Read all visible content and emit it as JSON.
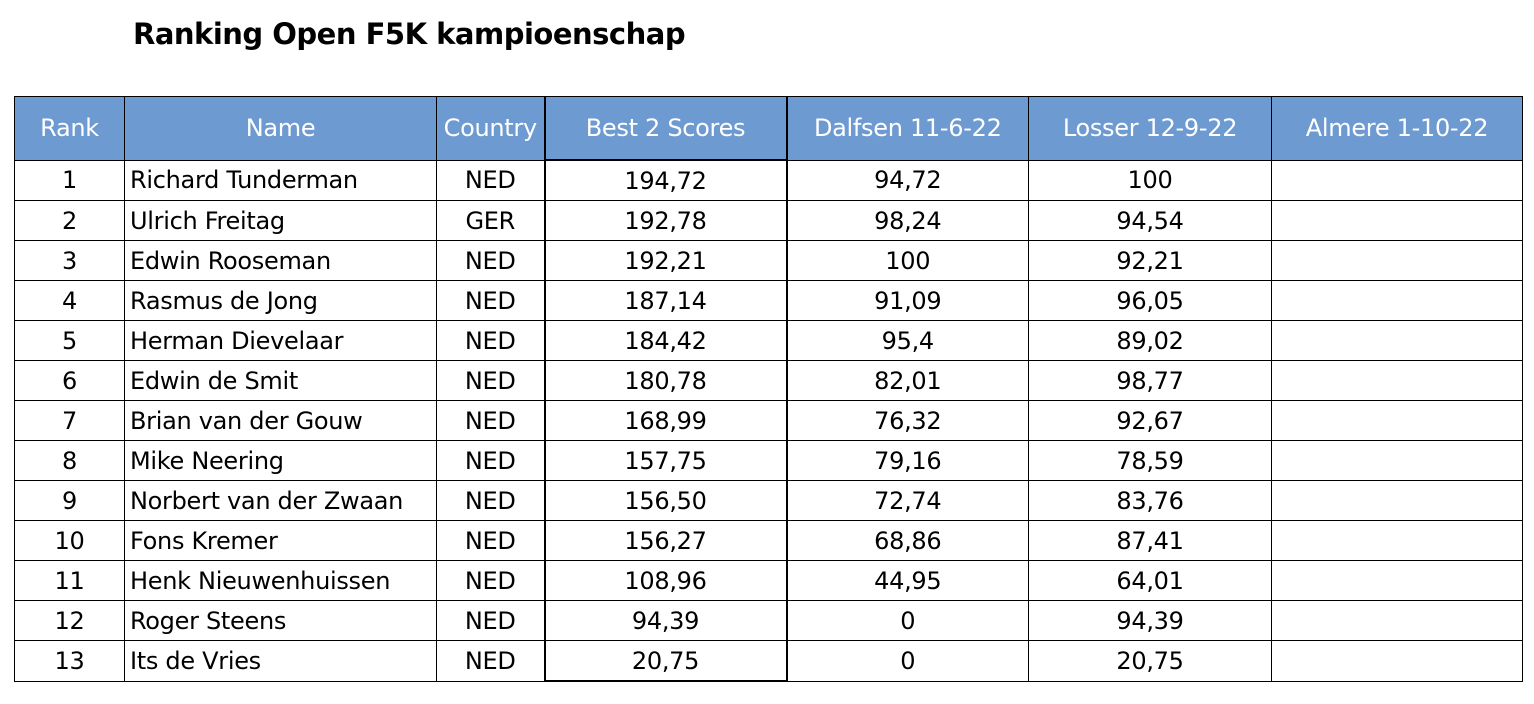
{
  "title": "Ranking Open F5K kampioenschap",
  "colors": {
    "header_bg": "#6d9ad0",
    "header_text": "#ffffff",
    "grid": "#000000"
  },
  "table": {
    "headers": {
      "rank": "Rank",
      "name": "Name",
      "country": "Country",
      "best": "Best 2 Scores",
      "event1": "Dalfsen 11-6-22",
      "event2": "Losser 12-9-22",
      "event3": "Almere 1-10-22"
    },
    "rows": [
      {
        "rank": "1",
        "name": "Richard Tunderman",
        "country": "NED",
        "best": "194,72",
        "event1": "94,72",
        "event2": "100",
        "event3": ""
      },
      {
        "rank": "2",
        "name": "Ulrich Freitag",
        "country": "GER",
        "best": "192,78",
        "event1": "98,24",
        "event2": "94,54",
        "event3": ""
      },
      {
        "rank": "3",
        "name": "Edwin Rooseman",
        "country": "NED",
        "best": "192,21",
        "event1": "100",
        "event2": "92,21",
        "event3": ""
      },
      {
        "rank": "4",
        "name": "Rasmus de Jong",
        "country": "NED",
        "best": "187,14",
        "event1": "91,09",
        "event2": "96,05",
        "event3": ""
      },
      {
        "rank": "5",
        "name": "Herman Dievelaar",
        "country": "NED",
        "best": "184,42",
        "event1": "95,4",
        "event2": "89,02",
        "event3": ""
      },
      {
        "rank": "6",
        "name": "Edwin de Smit",
        "country": "NED",
        "best": "180,78",
        "event1": "82,01",
        "event2": "98,77",
        "event3": ""
      },
      {
        "rank": "7",
        "name": "Brian van der Gouw",
        "country": "NED",
        "best": "168,99",
        "event1": "76,32",
        "event2": "92,67",
        "event3": ""
      },
      {
        "rank": "8",
        "name": "Mike Neering",
        "country": "NED",
        "best": "157,75",
        "event1": "79,16",
        "event2": "78,59",
        "event3": ""
      },
      {
        "rank": "9",
        "name": "Norbert van der Zwaan",
        "country": "NED",
        "best": "156,50",
        "event1": "72,74",
        "event2": "83,76",
        "event3": ""
      },
      {
        "rank": "10",
        "name": "Fons Kremer",
        "country": "NED",
        "best": "156,27",
        "event1": "68,86",
        "event2": "87,41",
        "event3": ""
      },
      {
        "rank": "11",
        "name": "Henk Nieuwenhuissen",
        "country": "NED",
        "best": "108,96",
        "event1": "44,95",
        "event2": "64,01",
        "event3": ""
      },
      {
        "rank": "12",
        "name": "Roger Steens",
        "country": "NED",
        "best": "94,39",
        "event1": "0",
        "event2": "94,39",
        "event3": ""
      },
      {
        "rank": "13",
        "name": "Its de Vries",
        "country": "NED",
        "best": "20,75",
        "event1": "0",
        "event2": "20,75",
        "event3": ""
      }
    ]
  }
}
